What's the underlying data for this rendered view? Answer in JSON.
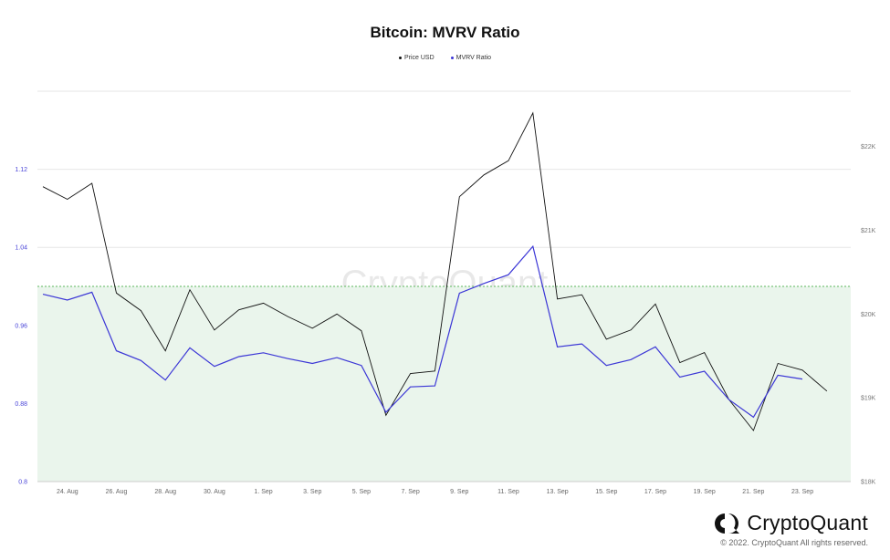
{
  "chart_data": {
    "type": "line",
    "title": "Bitcoin: MVRV Ratio",
    "legend": [
      {
        "name": "Price USD",
        "color": "#111111"
      },
      {
        "name": "MVRV Ratio",
        "color": "#3b36d6"
      }
    ],
    "x_tick_labels": [
      "24. Aug",
      "26. Aug",
      "28. Aug",
      "30. Aug",
      "1. Sep",
      "3. Sep",
      "5. Sep",
      "7. Sep",
      "9. Sep",
      "11. Sep",
      "13. Sep",
      "15. Sep",
      "17. Sep",
      "19. Sep",
      "21. Sep",
      "23. Sep"
    ],
    "x": [
      "2022-08-23",
      "2022-08-24",
      "2022-08-25",
      "2022-08-26",
      "2022-08-27",
      "2022-08-28",
      "2022-08-29",
      "2022-08-30",
      "2022-08-31",
      "2022-09-01",
      "2022-09-02",
      "2022-09-03",
      "2022-09-04",
      "2022-09-05",
      "2022-09-06",
      "2022-09-07",
      "2022-09-08",
      "2022-09-09",
      "2022-09-10",
      "2022-09-11",
      "2022-09-12",
      "2022-09-13",
      "2022-09-14",
      "2022-09-15",
      "2022-09-16",
      "2022-09-17",
      "2022-09-18",
      "2022-09-19",
      "2022-09-20",
      "2022-09-21",
      "2022-09-22",
      "2022-09-23",
      "2022-09-24"
    ],
    "series": [
      {
        "name": "Price USD",
        "axis": "right",
        "color": "#111111",
        "values": [
          21520,
          21370,
          21560,
          20250,
          20040,
          19560,
          20290,
          19810,
          20050,
          20130,
          19970,
          19830,
          20000,
          19800,
          18790,
          19290,
          19320,
          21400,
          21660,
          21830,
          22400,
          20180,
          20230,
          19700,
          19810,
          20120,
          19420,
          19540,
          18980,
          18610,
          19410,
          19330,
          19080
        ]
      },
      {
        "name": "MVRV Ratio",
        "axis": "left",
        "color": "#3b36d6",
        "values": [
          0.992,
          0.986,
          0.994,
          0.934,
          0.924,
          0.904,
          0.937,
          0.918,
          0.928,
          0.932,
          0.926,
          0.921,
          0.927,
          0.919,
          0.871,
          0.897,
          0.898,
          0.993,
          1.003,
          1.012,
          1.041,
          0.938,
          0.941,
          0.919,
          0.925,
          0.938,
          0.907,
          0.913,
          0.884,
          0.866,
          0.909,
          0.905,
          null
        ]
      }
    ],
    "y_left": {
      "ticks": [
        0.8,
        0.88,
        0.96,
        1.04,
        1.12
      ],
      "tick_labels": [
        "0.8",
        "0.88",
        "0.96",
        "1.04",
        "1.12"
      ],
      "range": [
        0.8,
        1.2
      ],
      "color": "#4a45d8"
    },
    "y_right": {
      "ticks": [
        18000,
        19000,
        20000,
        21000,
        22000
      ],
      "tick_labels": [
        "$18K",
        "$19K",
        "$20K",
        "$21K",
        "$22K"
      ],
      "range": [
        18000,
        22660
      ],
      "color": "#777777"
    },
    "threshold": {
      "value": 1.0,
      "band": "below",
      "band_color": "#eaf5ec",
      "line_color": "#5cb85c"
    },
    "watermark": "CryptoQuant",
    "grid": true
  },
  "brand": {
    "name": "CryptoQuant",
    "copyright": "© 2022. CryptoQuant All rights reserved."
  }
}
